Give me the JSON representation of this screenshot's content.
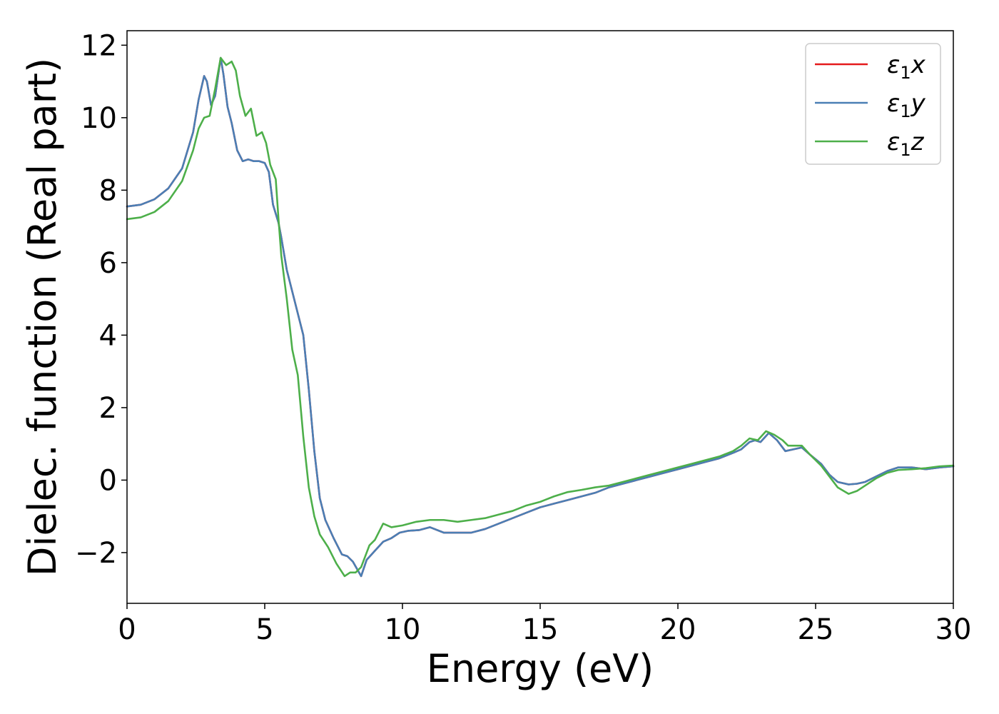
{
  "chart_data": {
    "type": "line",
    "title": "",
    "xlabel": "Energy (eV)",
    "ylabel": "Dielec. function (Real part)",
    "xlim": [
      0,
      30
    ],
    "ylim": [
      -3.4,
      12.4
    ],
    "xticks": [
      0,
      5,
      10,
      15,
      20,
      25,
      30
    ],
    "xtick_labels": [
      "0",
      "5",
      "10",
      "15",
      "20",
      "25",
      "30"
    ],
    "yticks": [
      -2,
      0,
      2,
      4,
      6,
      8,
      10,
      12
    ],
    "ytick_labels": [
      "−2",
      "0",
      "2",
      "4",
      "6",
      "8",
      "10",
      "12"
    ],
    "grid": false,
    "legend_position": "top-right",
    "series": [
      {
        "name": "ε1x",
        "name_parts": {
          "symbol": "ε",
          "sub": "1",
          "suffix": "x"
        },
        "color": "#e41a1c",
        "points": [
          [
            0,
            7.55
          ],
          [
            0.5,
            7.6
          ],
          [
            1.0,
            7.75
          ],
          [
            1.5,
            8.05
          ],
          [
            2.0,
            8.6
          ],
          [
            2.4,
            9.6
          ],
          [
            2.6,
            10.5
          ],
          [
            2.8,
            11.15
          ],
          [
            2.9,
            11.0
          ],
          [
            3.05,
            10.35
          ],
          [
            3.2,
            10.6
          ],
          [
            3.4,
            11.65
          ],
          [
            3.5,
            11.2
          ],
          [
            3.65,
            10.3
          ],
          [
            3.8,
            9.85
          ],
          [
            4.0,
            9.1
          ],
          [
            4.2,
            8.8
          ],
          [
            4.4,
            8.85
          ],
          [
            4.6,
            8.8
          ],
          [
            4.8,
            8.8
          ],
          [
            5.0,
            8.75
          ],
          [
            5.15,
            8.5
          ],
          [
            5.3,
            7.6
          ],
          [
            5.5,
            7.1
          ],
          [
            5.6,
            6.7
          ],
          [
            5.8,
            5.8
          ],
          [
            6.0,
            5.2
          ],
          [
            6.2,
            4.6
          ],
          [
            6.4,
            4.0
          ],
          [
            6.6,
            2.5
          ],
          [
            6.8,
            0.8
          ],
          [
            7.0,
            -0.5
          ],
          [
            7.2,
            -1.1
          ],
          [
            7.5,
            -1.6
          ],
          [
            7.8,
            -2.05
          ],
          [
            8.0,
            -2.1
          ],
          [
            8.2,
            -2.25
          ],
          [
            8.5,
            -2.65
          ],
          [
            8.7,
            -2.2
          ],
          [
            9.0,
            -1.95
          ],
          [
            9.3,
            -1.7
          ],
          [
            9.6,
            -1.6
          ],
          [
            9.9,
            -1.45
          ],
          [
            10.2,
            -1.4
          ],
          [
            10.6,
            -1.38
          ],
          [
            11.0,
            -1.3
          ],
          [
            11.5,
            -1.45
          ],
          [
            12.0,
            -1.45
          ],
          [
            12.5,
            -1.45
          ],
          [
            13.0,
            -1.35
          ],
          [
            13.5,
            -1.2
          ],
          [
            14.0,
            -1.05
          ],
          [
            14.5,
            -0.9
          ],
          [
            15.0,
            -0.75
          ],
          [
            15.5,
            -0.65
          ],
          [
            16.0,
            -0.55
          ],
          [
            16.5,
            -0.45
          ],
          [
            17.0,
            -0.35
          ],
          [
            17.5,
            -0.2
          ],
          [
            18.0,
            -0.1
          ],
          [
            18.5,
            0.0
          ],
          [
            19.0,
            0.1
          ],
          [
            19.5,
            0.2
          ],
          [
            20.0,
            0.3
          ],
          [
            20.5,
            0.4
          ],
          [
            21.0,
            0.5
          ],
          [
            21.5,
            0.6
          ],
          [
            22.0,
            0.75
          ],
          [
            22.3,
            0.85
          ],
          [
            22.6,
            1.05
          ],
          [
            22.8,
            1.1
          ],
          [
            23.0,
            1.05
          ],
          [
            23.3,
            1.3
          ],
          [
            23.6,
            1.1
          ],
          [
            23.9,
            0.8
          ],
          [
            24.2,
            0.85
          ],
          [
            24.5,
            0.9
          ],
          [
            24.8,
            0.7
          ],
          [
            25.2,
            0.45
          ],
          [
            25.5,
            0.15
          ],
          [
            25.8,
            -0.05
          ],
          [
            26.2,
            -0.12
          ],
          [
            26.5,
            -0.1
          ],
          [
            26.8,
            -0.05
          ],
          [
            27.2,
            0.1
          ],
          [
            27.6,
            0.25
          ],
          [
            28.0,
            0.35
          ],
          [
            28.5,
            0.35
          ],
          [
            29.0,
            0.3
          ],
          [
            29.5,
            0.35
          ],
          [
            30.0,
            0.38
          ]
        ]
      },
      {
        "name": "ε1y",
        "name_parts": {
          "symbol": "ε",
          "sub": "1",
          "suffix": "y"
        },
        "color": "#4a7fb5",
        "points": [
          [
            0,
            7.55
          ],
          [
            0.5,
            7.6
          ],
          [
            1.0,
            7.75
          ],
          [
            1.5,
            8.05
          ],
          [
            2.0,
            8.6
          ],
          [
            2.4,
            9.6
          ],
          [
            2.6,
            10.5
          ],
          [
            2.8,
            11.15
          ],
          [
            2.9,
            11.0
          ],
          [
            3.05,
            10.35
          ],
          [
            3.2,
            10.6
          ],
          [
            3.4,
            11.65
          ],
          [
            3.5,
            11.2
          ],
          [
            3.65,
            10.3
          ],
          [
            3.8,
            9.85
          ],
          [
            4.0,
            9.1
          ],
          [
            4.2,
            8.8
          ],
          [
            4.4,
            8.85
          ],
          [
            4.6,
            8.8
          ],
          [
            4.8,
            8.8
          ],
          [
            5.0,
            8.75
          ],
          [
            5.15,
            8.5
          ],
          [
            5.3,
            7.6
          ],
          [
            5.5,
            7.1
          ],
          [
            5.6,
            6.7
          ],
          [
            5.8,
            5.8
          ],
          [
            6.0,
            5.2
          ],
          [
            6.2,
            4.6
          ],
          [
            6.4,
            4.0
          ],
          [
            6.6,
            2.5
          ],
          [
            6.8,
            0.8
          ],
          [
            7.0,
            -0.5
          ],
          [
            7.2,
            -1.1
          ],
          [
            7.5,
            -1.6
          ],
          [
            7.8,
            -2.05
          ],
          [
            8.0,
            -2.1
          ],
          [
            8.2,
            -2.25
          ],
          [
            8.5,
            -2.65
          ],
          [
            8.7,
            -2.2
          ],
          [
            9.0,
            -1.95
          ],
          [
            9.3,
            -1.7
          ],
          [
            9.6,
            -1.6
          ],
          [
            9.9,
            -1.45
          ],
          [
            10.2,
            -1.4
          ],
          [
            10.6,
            -1.38
          ],
          [
            11.0,
            -1.3
          ],
          [
            11.5,
            -1.45
          ],
          [
            12.0,
            -1.45
          ],
          [
            12.5,
            -1.45
          ],
          [
            13.0,
            -1.35
          ],
          [
            13.5,
            -1.2
          ],
          [
            14.0,
            -1.05
          ],
          [
            14.5,
            -0.9
          ],
          [
            15.0,
            -0.75
          ],
          [
            15.5,
            -0.65
          ],
          [
            16.0,
            -0.55
          ],
          [
            16.5,
            -0.45
          ],
          [
            17.0,
            -0.35
          ],
          [
            17.5,
            -0.2
          ],
          [
            18.0,
            -0.1
          ],
          [
            18.5,
            0.0
          ],
          [
            19.0,
            0.1
          ],
          [
            19.5,
            0.2
          ],
          [
            20.0,
            0.3
          ],
          [
            20.5,
            0.4
          ],
          [
            21.0,
            0.5
          ],
          [
            21.5,
            0.6
          ],
          [
            22.0,
            0.75
          ],
          [
            22.3,
            0.85
          ],
          [
            22.6,
            1.05
          ],
          [
            22.8,
            1.1
          ],
          [
            23.0,
            1.05
          ],
          [
            23.3,
            1.3
          ],
          [
            23.6,
            1.1
          ],
          [
            23.9,
            0.8
          ],
          [
            24.2,
            0.85
          ],
          [
            24.5,
            0.9
          ],
          [
            24.8,
            0.7
          ],
          [
            25.2,
            0.45
          ],
          [
            25.5,
            0.15
          ],
          [
            25.8,
            -0.05
          ],
          [
            26.2,
            -0.12
          ],
          [
            26.5,
            -0.1
          ],
          [
            26.8,
            -0.05
          ],
          [
            27.2,
            0.1
          ],
          [
            27.6,
            0.25
          ],
          [
            28.0,
            0.35
          ],
          [
            28.5,
            0.35
          ],
          [
            29.0,
            0.3
          ],
          [
            29.5,
            0.35
          ],
          [
            30.0,
            0.38
          ]
        ]
      },
      {
        "name": "ε1z",
        "name_parts": {
          "symbol": "ε",
          "sub": "1",
          "suffix": "z"
        },
        "color": "#4daf4a",
        "points": [
          [
            0,
            7.2
          ],
          [
            0.5,
            7.25
          ],
          [
            1.0,
            7.4
          ],
          [
            1.5,
            7.7
          ],
          [
            2.0,
            8.25
          ],
          [
            2.4,
            9.1
          ],
          [
            2.6,
            9.7
          ],
          [
            2.8,
            10.0
          ],
          [
            3.0,
            10.05
          ],
          [
            3.2,
            10.8
          ],
          [
            3.4,
            11.65
          ],
          [
            3.6,
            11.45
          ],
          [
            3.8,
            11.55
          ],
          [
            3.95,
            11.3
          ],
          [
            4.1,
            10.6
          ],
          [
            4.3,
            10.05
          ],
          [
            4.5,
            10.25
          ],
          [
            4.7,
            9.5
          ],
          [
            4.9,
            9.6
          ],
          [
            5.05,
            9.3
          ],
          [
            5.2,
            8.7
          ],
          [
            5.4,
            8.3
          ],
          [
            5.5,
            7.2
          ],
          [
            5.6,
            6.2
          ],
          [
            5.8,
            5.0
          ],
          [
            6.0,
            3.6
          ],
          [
            6.2,
            2.9
          ],
          [
            6.4,
            1.2
          ],
          [
            6.6,
            -0.2
          ],
          [
            6.8,
            -1.0
          ],
          [
            7.0,
            -1.5
          ],
          [
            7.3,
            -1.85
          ],
          [
            7.6,
            -2.3
          ],
          [
            7.9,
            -2.65
          ],
          [
            8.1,
            -2.55
          ],
          [
            8.3,
            -2.55
          ],
          [
            8.5,
            -2.4
          ],
          [
            8.8,
            -1.8
          ],
          [
            9.0,
            -1.65
          ],
          [
            9.3,
            -1.2
          ],
          [
            9.6,
            -1.3
          ],
          [
            10.0,
            -1.25
          ],
          [
            10.5,
            -1.15
          ],
          [
            11.0,
            -1.1
          ],
          [
            11.5,
            -1.1
          ],
          [
            12.0,
            -1.15
          ],
          [
            12.5,
            -1.1
          ],
          [
            13.0,
            -1.05
          ],
          [
            13.5,
            -0.95
          ],
          [
            14.0,
            -0.85
          ],
          [
            14.5,
            -0.7
          ],
          [
            15.0,
            -0.6
          ],
          [
            15.5,
            -0.45
          ],
          [
            16.0,
            -0.33
          ],
          [
            16.5,
            -0.27
          ],
          [
            17.0,
            -0.2
          ],
          [
            17.5,
            -0.15
          ],
          [
            18.0,
            -0.05
          ],
          [
            18.5,
            0.05
          ],
          [
            19.0,
            0.15
          ],
          [
            19.5,
            0.25
          ],
          [
            20.0,
            0.35
          ],
          [
            20.5,
            0.45
          ],
          [
            21.0,
            0.55
          ],
          [
            21.5,
            0.65
          ],
          [
            22.0,
            0.8
          ],
          [
            22.3,
            0.95
          ],
          [
            22.6,
            1.15
          ],
          [
            22.9,
            1.1
          ],
          [
            23.2,
            1.35
          ],
          [
            23.5,
            1.25
          ],
          [
            23.8,
            1.1
          ],
          [
            24.0,
            0.95
          ],
          [
            24.5,
            0.95
          ],
          [
            24.8,
            0.7
          ],
          [
            25.2,
            0.4
          ],
          [
            25.5,
            0.1
          ],
          [
            25.8,
            -0.2
          ],
          [
            26.2,
            -0.38
          ],
          [
            26.5,
            -0.3
          ],
          [
            26.8,
            -0.15
          ],
          [
            27.2,
            0.05
          ],
          [
            27.6,
            0.2
          ],
          [
            28.0,
            0.28
          ],
          [
            28.5,
            0.3
          ],
          [
            29.0,
            0.33
          ],
          [
            29.5,
            0.38
          ],
          [
            30.0,
            0.4
          ]
        ]
      }
    ]
  }
}
